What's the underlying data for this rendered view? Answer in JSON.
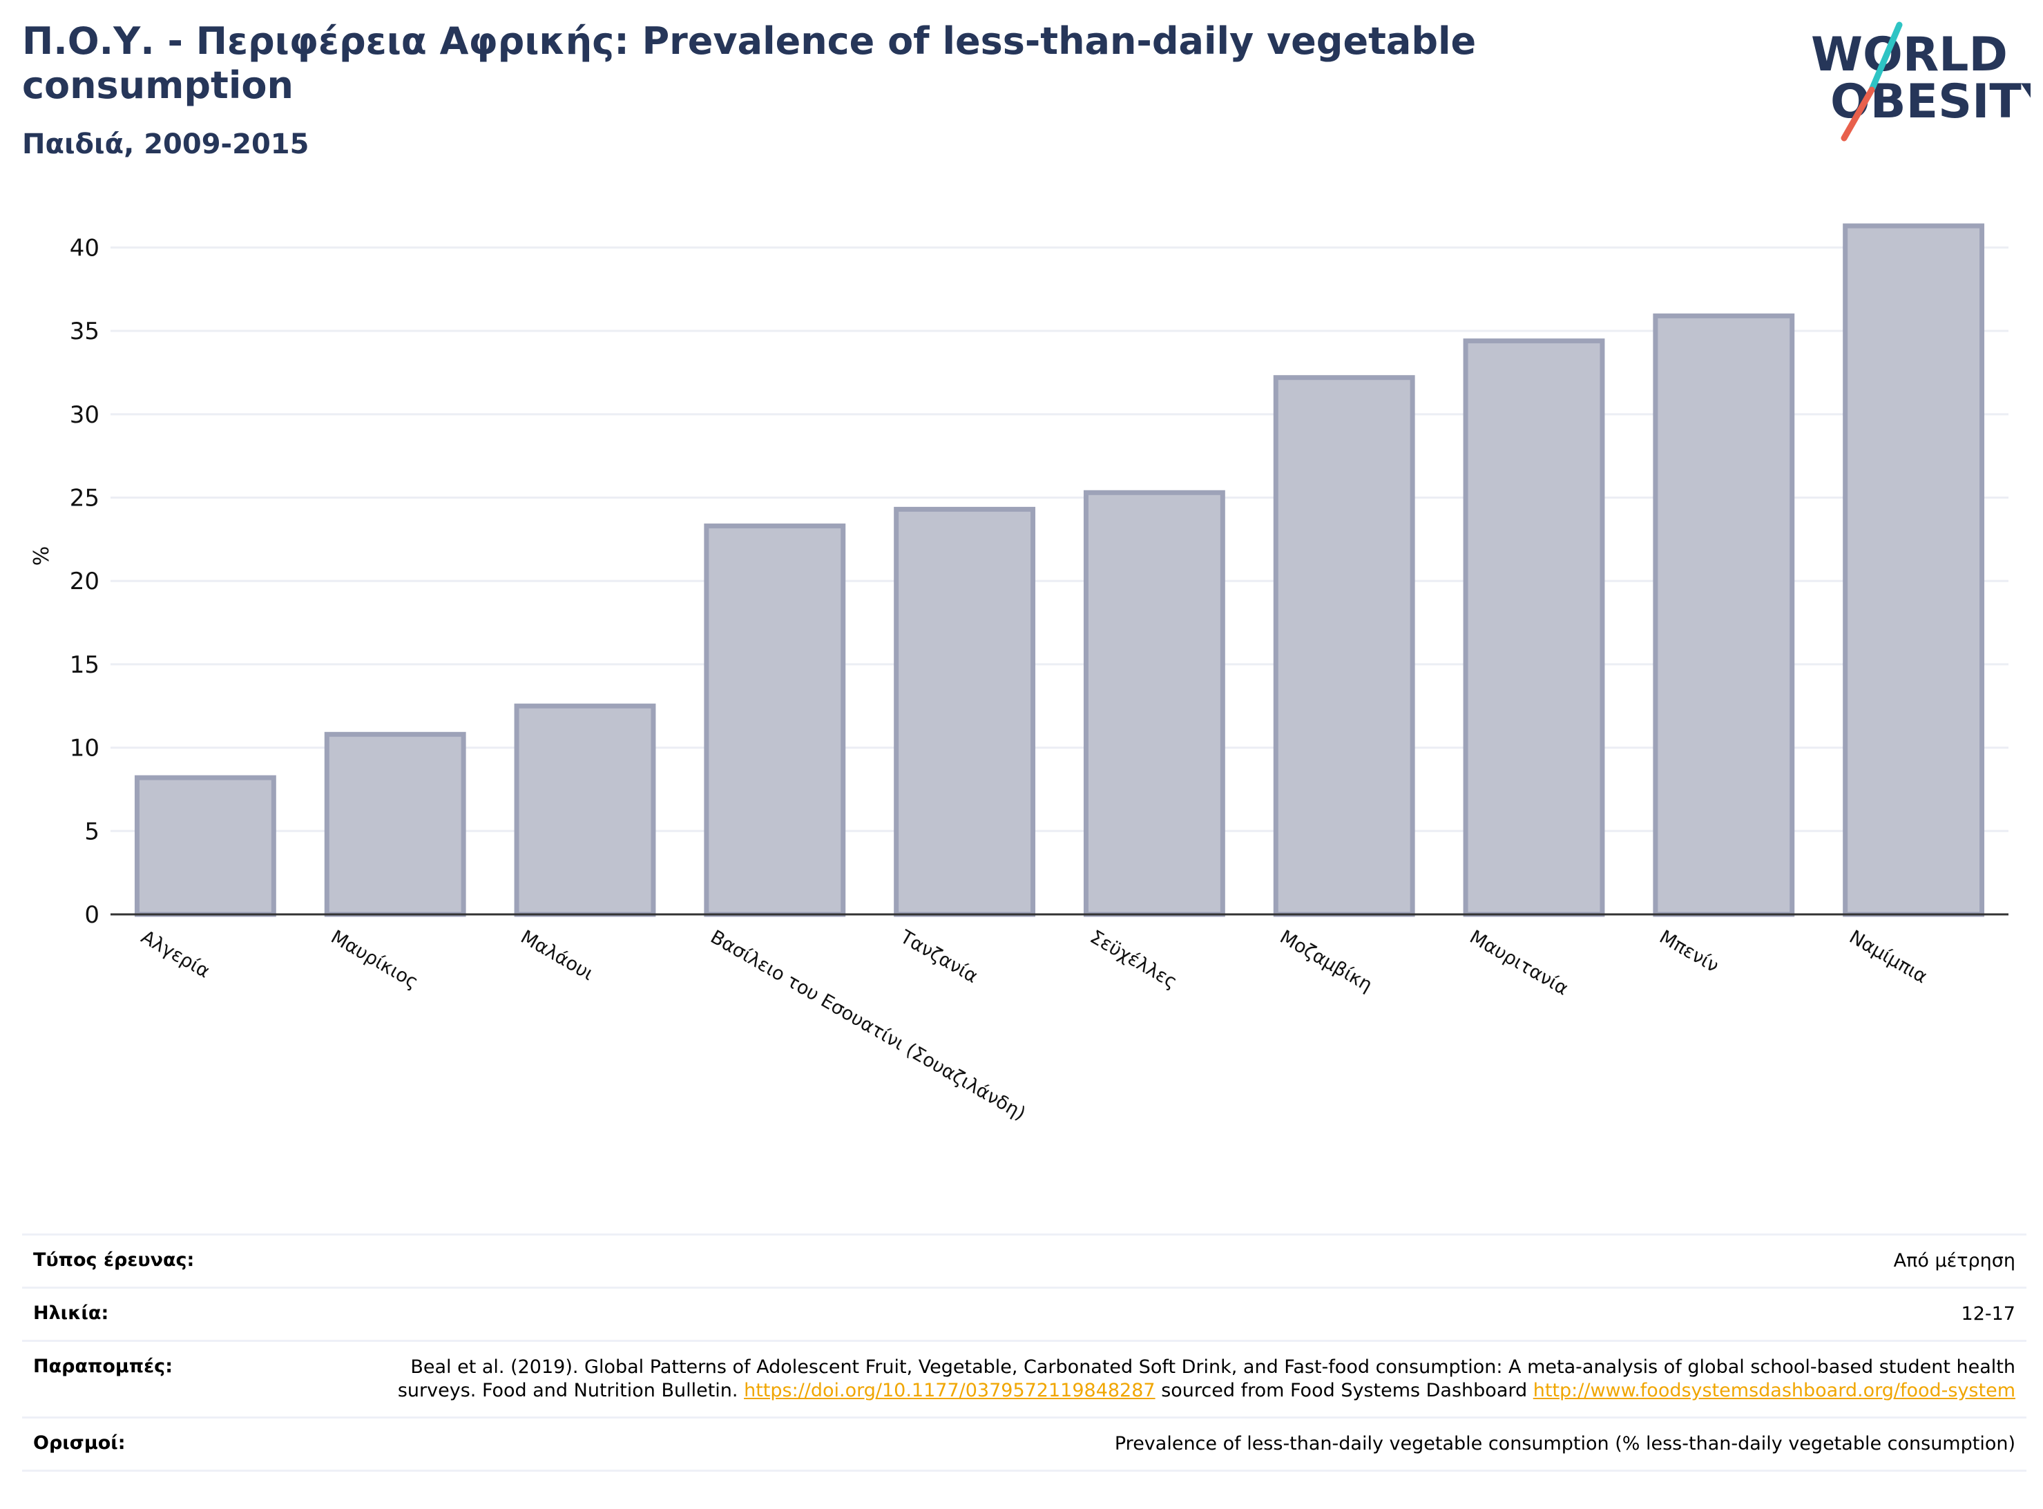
{
  "header": {
    "title": "Π.Ο.Υ. - Περιφέρεια Αφρικής: Prevalence of less-than-daily vegetable consumption",
    "subtitle": "Παιδιά, 2009-2015"
  },
  "logo": {
    "line1": "WORLD",
    "line2": "OBESITY",
    "colors": {
      "text": "#263659",
      "slash_top": "#2ec4c4",
      "slash_bottom": "#e8604c"
    }
  },
  "chart_data": {
    "type": "bar",
    "ylabel": "%",
    "xlabel": "",
    "ylim": [
      0,
      43
    ],
    "yticks": [
      0,
      5,
      10,
      15,
      20,
      25,
      30,
      35,
      40
    ],
    "grid": true,
    "categories": [
      "Αλγερία",
      "Μαυρίκιος",
      "Μαλάουι",
      "Βασίλειο του Εσουατίνι (Σουαζιλάνδη)",
      "Τανζανία",
      "Σεϋχέλλες",
      "Μοζαμβίκη",
      "Μαυριτανία",
      "Μπενίν",
      "Ναμίμπια"
    ],
    "values": [
      8.2,
      10.8,
      12.5,
      23.3,
      24.3,
      25.3,
      32.2,
      34.4,
      35.9,
      41.3
    ],
    "colors": {
      "bar_fill": "#bfc2cf",
      "bar_edge": "#9da2b8",
      "grid": "#eceef4",
      "axis": "#333333"
    }
  },
  "info": {
    "survey_type": {
      "label": "Τύπος έρευνας:",
      "value": "Από μέτρηση"
    },
    "age": {
      "label": "Ηλικία:",
      "value": "12-17"
    },
    "references": {
      "label": "Παραπομπές:",
      "text1": "Beal et al. (2019). Global Patterns of Adolescent Fruit, Vegetable, Carbonated Soft Drink, and Fast-food consumption: A meta-analysis of global school-based student health surveys. Food and Nutrition Bulletin.",
      "link1": "https://doi.org/10.1177/0379572119848287",
      "text2": "sourced from Food Systems Dashboard",
      "link2": "http://www.foodsystemsdashboard.org/food-system"
    },
    "definitions": {
      "label": "Ορισμοί:",
      "value": "Prevalence of less-than-daily vegetable consumption (% less-than-daily vegetable consumption)"
    }
  }
}
